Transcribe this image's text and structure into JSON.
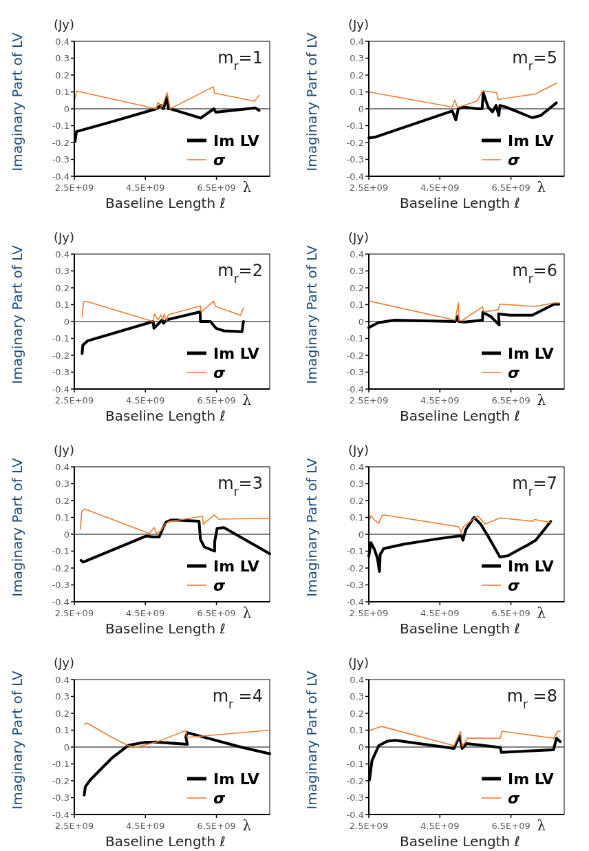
{
  "chart_data": [
    {
      "type": "line",
      "title": "m$_{r}$=1",
      "xlabel": "Baseline Length ℓ",
      "ylabel": "Imaginary Part of LV",
      "annotations": [
        "(Jy)",
        "λ"
      ],
      "xlim": [
        2500000000.0,
        8000000000.0
      ],
      "xticks": [
        {
          "value": 2500000000.0,
          "label": "2.5E+09"
        },
        {
          "value": 4500000000.0,
          "label": "4.5E+09"
        },
        {
          "value": 6500000000.0,
          "label": "6.5E+09"
        }
      ],
      "ylim": [
        -0.4,
        0.4
      ],
      "yticks": [
        -0.4,
        -0.3,
        -0.2,
        -0.1,
        0,
        0.1,
        0.2,
        0.3,
        0.4
      ],
      "grid": false,
      "legend": "bottom right",
      "ref_lines": [
        {
          "axis": "y",
          "value": 0,
          "color": "#000000"
        }
      ],
      "series": [
        {
          "name": "Im LV",
          "color": "#000000",
          "x": [
            2520000000.0,
            2560000000.0,
            3500000000.0,
            4810000000.0,
            4930000000.0,
            5010000000.0,
            5110000000.0,
            5150000000.0,
            5200000000.0,
            6060000000.0,
            6430000000.0,
            6480000000.0,
            7600000000.0,
            7700000000.0
          ],
          "values": [
            -0.195,
            -0.135,
            -0.08,
            0,
            0.02,
            0,
            0.07,
            0,
            0,
            -0.055,
            0,
            -0.02,
            0.005,
            -0.01
          ]
        },
        {
          "name": "σ",
          "color": "#ed7d31",
          "x": [
            2520000000.0,
            2560000000.0,
            4810000000.0,
            4850000000.0,
            4970000000.0,
            5110000000.0,
            5200000000.0,
            6410000000.0,
            6450000000.0,
            7570000000.0,
            7700000000.0
          ],
          "values": [
            0.06,
            0.105,
            0,
            0.04,
            0.01,
            0.095,
            0,
            0.13,
            0.093,
            0.045,
            0.08
          ]
        }
      ]
    },
    {
      "type": "line",
      "title": "m$_{r}$=5",
      "xlabel": "Baseline Length ℓ",
      "ylabel": "Imaginary Part of LV",
      "annotations": [
        "(Jy)",
        "λ"
      ],
      "xlim": [
        2500000000.0,
        8000000000.0
      ],
      "xticks": [
        {
          "value": 2500000000.0,
          "label": "2.5E+09"
        },
        {
          "value": 4500000000.0,
          "label": "4.5E+09"
        },
        {
          "value": 6500000000.0,
          "label": "6.5E+09"
        }
      ],
      "ylim": [
        -0.4,
        0.4
      ],
      "yticks": [
        -0.4,
        -0.3,
        -0.2,
        -0.1,
        0,
        0.1,
        0.2,
        0.3,
        0.4
      ],
      "grid": false,
      "legend": "bottom right",
      "ref_lines": [
        {
          "axis": "y",
          "value": 0,
          "color": "#000000"
        }
      ],
      "series": [
        {
          "name": "Im LV",
          "color": "#000000",
          "x": [
            2500000000.0,
            2680000000.0,
            4850000000.0,
            4950000000.0,
            5020000000.0,
            5160000000.0,
            5550000000.0,
            5690000000.0,
            5720000000.0,
            5860000000.0,
            5980000000.0,
            6080000000.0,
            6160000000.0,
            6190000000.0,
            6400000000.0,
            7100000000.0,
            7340000000.0,
            7780000000.0
          ],
          "values": [
            -0.172,
            -0.168,
            -0.013,
            -0.066,
            0.003,
            0.01,
            0,
            0,
            0.095,
            0.01,
            -0.018,
            0.02,
            -0.04,
            0.02,
            0.007,
            -0.053,
            -0.04,
            0.035
          ]
        },
        {
          "name": "σ",
          "color": "#ed7d31",
          "x": [
            2500000000.0,
            4850000000.0,
            4920000000.0,
            5000000000.0,
            5550000000.0,
            5710000000.0,
            6100000000.0,
            6140000000.0,
            7190000000.0,
            7780000000.0
          ],
          "values": [
            0.1,
            0.01,
            0.052,
            0.007,
            0.047,
            0.107,
            0.095,
            0.055,
            0.088,
            0.152
          ]
        }
      ]
    },
    {
      "type": "line",
      "title": "m$_{r}$=2",
      "xlabel": "Baseline Length ℓ",
      "ylabel": "Imaginary Part of LV",
      "annotations": [
        "(Jy)",
        "λ"
      ],
      "xlim": [
        2500000000.0,
        8000000000.0
      ],
      "xticks": [
        {
          "value": 2500000000.0,
          "label": "2.5E+09"
        },
        {
          "value": 4500000000.0,
          "label": "4.5E+09"
        },
        {
          "value": 6500000000.0,
          "label": "6.5E+09"
        }
      ],
      "ylim": [
        -0.4,
        0.4
      ],
      "yticks": [
        -0.4,
        -0.3,
        -0.2,
        -0.1,
        0,
        0.1,
        0.2,
        0.3,
        0.4
      ],
      "grid": false,
      "legend": "bottom right",
      "ref_lines": [
        {
          "axis": "y",
          "value": 0,
          "color": "#000000"
        }
      ],
      "series": [
        {
          "name": "Im LV",
          "color": "#000000",
          "x": [
            2720000000.0,
            2740000000.0,
            2870000000.0,
            4720000000.0,
            4740000000.0,
            4860000000.0,
            4970000000.0,
            5010000000.0,
            5100000000.0,
            6040000000.0,
            6050000000.0,
            6330000000.0,
            6490000000.0,
            6700000000.0,
            7220000000.0,
            7260000000.0
          ],
          "values": [
            -0.19,
            -0.14,
            -0.115,
            0,
            -0.04,
            -0.015,
            0.01,
            -0.01,
            0.01,
            0.057,
            0,
            0,
            -0.04,
            -0.055,
            -0.06,
            0
          ]
        },
        {
          "name": "σ",
          "color": "#ed7d31",
          "x": [
            2720000000.0,
            2760000000.0,
            2830000000.0,
            4720000000.0,
            4750000000.0,
            4860000000.0,
            4940000000.0,
            4990000000.0,
            5030000000.0,
            5100000000.0,
            5140000000.0,
            6050000000.0,
            6070000000.0,
            6420000000.0,
            6480000000.0,
            7180000000.0,
            7260000000.0
          ],
          "values": [
            0.03,
            0.115,
            0.12,
            0,
            0.045,
            0.01,
            0.04,
            0.01,
            0.045,
            0.005,
            0.04,
            0.093,
            0.057,
            0.12,
            0.09,
            0.037,
            0.08
          ]
        }
      ]
    },
    {
      "type": "line",
      "title": "m$_{r}$=6",
      "xlabel": "Baseline Length ℓ",
      "ylabel": "Imaginary Part of LV",
      "annotations": [
        "(Jy)",
        "λ"
      ],
      "xlim": [
        2500000000.0,
        8000000000.0
      ],
      "xticks": [
        {
          "value": 2500000000.0,
          "label": "2.5E+09"
        },
        {
          "value": 4500000000.0,
          "label": "4.5E+09"
        },
        {
          "value": 6500000000.0,
          "label": "6.5E+09"
        }
      ],
      "ylim": [
        -0.4,
        0.4
      ],
      "yticks": [
        -0.4,
        -0.3,
        -0.2,
        -0.1,
        0,
        0.1,
        0.2,
        0.3,
        0.4
      ],
      "grid": false,
      "legend": "bottom right",
      "ref_lines": [
        {
          "axis": "y",
          "value": 0,
          "color": "#000000"
        }
      ],
      "series": [
        {
          "name": "Im LV",
          "color": "#000000",
          "x": [
            2500000000.0,
            2760000000.0,
            3220000000.0,
            4930000000.0,
            4990000000.0,
            5040000000.0,
            5200000000.0,
            5700000000.0,
            5710000000.0,
            5930000000.0,
            6170000000.0,
            6150000000.0,
            6480000000.0,
            7100000000.0,
            7720000000.0,
            7850000000.0
          ],
          "values": [
            -0.036,
            -0.007,
            0.008,
            0,
            0.03,
            0,
            -0.003,
            0.008,
            0.055,
            0.03,
            -0.02,
            0.045,
            0.038,
            0.038,
            0.103,
            0.103
          ]
        },
        {
          "name": "σ",
          "color": "#ed7d31",
          "x": [
            2500000000.0,
            4930000000.0,
            5020000000.0,
            5040000000.0,
            5120000000.0,
            5700000000.0,
            5740000000.0,
            6150000000.0,
            6180000000.0,
            7170000000.0,
            7720000000.0,
            7850000000.0
          ],
          "values": [
            0.122,
            0.008,
            0.11,
            0.005,
            0.005,
            0.087,
            0.057,
            0.07,
            0.103,
            0.09,
            0.11,
            0.11
          ]
        }
      ]
    },
    {
      "type": "line",
      "title": "m$_{r}$=3",
      "xlabel": "Baseline Length ℓ",
      "ylabel": "Imaginary Part of LV",
      "annotations": [
        "(Jy)",
        "λ"
      ],
      "xlim": [
        2500000000.0,
        8000000000.0
      ],
      "xticks": [
        {
          "value": 2500000000.0,
          "label": "2.5E+09"
        },
        {
          "value": 4500000000.0,
          "label": "4.5E+09"
        },
        {
          "value": 6500000000.0,
          "label": "6.5E+09"
        }
      ],
      "ylim": [
        -0.4,
        0.4
      ],
      "yticks": [
        -0.4,
        -0.3,
        -0.2,
        -0.1,
        0,
        0.1,
        0.2,
        0.3,
        0.4
      ],
      "grid": false,
      "legend": "bottom right",
      "ref_lines": [
        {
          "axis": "y",
          "value": 0,
          "color": "#000000"
        }
      ],
      "series": [
        {
          "name": "Im LV",
          "color": "#000000",
          "x": [
            2690000000.0,
            2750000000.0,
            4530000000.0,
            4700000000.0,
            4890000000.0,
            4990000000.0,
            5080000000.0,
            5240000000.0,
            6010000000.0,
            6050000000.0,
            6160000000.0,
            6450000000.0,
            6450000000.0,
            6520000000.0,
            6710000000.0,
            8000000000.0
          ],
          "values": [
            -0.155,
            -0.165,
            -0.01,
            -0.015,
            -0.015,
            0.035,
            0.072,
            0.085,
            0.078,
            -0.03,
            -0.075,
            -0.1,
            -0.045,
            0.035,
            0.04,
            -0.115
          ]
        },
        {
          "name": "σ",
          "color": "#ed7d31",
          "x": [
            2670000000.0,
            2710000000.0,
            2790000000.0,
            4610000000.0,
            4750000000.0,
            4810000000.0,
            4930000000.0,
            5040000000.0,
            5160000000.0,
            6110000000.0,
            6130000000.0,
            6440000000.0,
            6560000000.0,
            8000000000.0
          ],
          "values": [
            0.03,
            0.135,
            0.15,
            0.005,
            0.04,
            0.005,
            0.02,
            0.055,
            0.075,
            0.107,
            0.06,
            0.115,
            0.09,
            0.095
          ]
        }
      ]
    },
    {
      "type": "line",
      "title": "m$_{r}$=7",
      "xlabel": "Baseline Length ℓ",
      "ylabel": "Imaginary Part of LV",
      "annotations": [
        "(Jy)",
        "λ"
      ],
      "xlim": [
        2500000000.0,
        8000000000.0
      ],
      "xticks": [
        {
          "value": 2500000000.0,
          "label": "2.5E+09"
        },
        {
          "value": 4500000000.0,
          "label": "4.5E+09"
        },
        {
          "value": 6500000000.0,
          "label": "6.5E+09"
        }
      ],
      "ylim": [
        -0.4,
        0.4
      ],
      "yticks": [
        -0.4,
        -0.3,
        -0.2,
        -0.1,
        0,
        0.1,
        0.2,
        0.3,
        0.4
      ],
      "grid": false,
      "legend": "bottom right",
      "ref_lines": [
        {
          "axis": "y",
          "value": 0,
          "color": "#000000"
        }
      ],
      "series": [
        {
          "name": "Im LV",
          "color": "#000000",
          "x": [
            2500000000.0,
            2560000000.0,
            2660000000.0,
            2740000000.0,
            2800000000.0,
            2820000000.0,
            2920000000.0,
            3500000000.0,
            4500000000.0,
            5100000000.0,
            5150000000.0,
            5230000000.0,
            5460000000.0,
            5650000000.0,
            5880000000.0,
            6190000000.0,
            6420000000.0,
            7000000000.0,
            7200000000.0,
            7620000000.0
          ],
          "values": [
            -0.13,
            -0.05,
            -0.09,
            -0.14,
            -0.22,
            -0.12,
            -0.085,
            -0.058,
            -0.025,
            -0.008,
            -0.035,
            0.028,
            0.1,
            0.06,
            -0.02,
            -0.135,
            -0.127,
            -0.06,
            -0.035,
            0.076
          ]
        },
        {
          "name": "σ",
          "color": "#ed7d31",
          "x": [
            2500000000.0,
            2560000000.0,
            2660000000.0,
            2780000000.0,
            2870000000.0,
            2910000000.0,
            5030000000.0,
            5100000000.0,
            5160000000.0,
            5570000000.0,
            5770000000.0,
            6190000000.0,
            7120000000.0,
            7160000000.0,
            7620000000.0
          ],
          "values": [
            0.077,
            0.11,
            0.085,
            0.065,
            0.11,
            0.115,
            0.045,
            0.01,
            0.045,
            0.11,
            0.06,
            0.097,
            0.077,
            0.088,
            0.07
          ]
        }
      ]
    },
    {
      "type": "line",
      "title": "m$_{r}$ =4",
      "xlabel": "Baseline Length ℓ",
      "ylabel": "Imaginary Part of LV",
      "annotations": [
        "(Jy)",
        "λ"
      ],
      "xlim": [
        2500000000.0,
        8000000000.0
      ],
      "xticks": [
        {
          "value": 2500000000.0,
          "label": "2.5E+09"
        },
        {
          "value": 4500000000.0,
          "label": "4.5E+09"
        },
        {
          "value": 6500000000.0,
          "label": "6.5E+09"
        }
      ],
      "ylim": [
        -0.4,
        0.4
      ],
      "yticks": [
        -0.4,
        -0.3,
        -0.2,
        -0.1,
        0,
        0.1,
        0.2,
        0.3,
        0.4
      ],
      "grid": false,
      "legend": "bottom right",
      "ref_lines": [
        {
          "axis": "y",
          "value": 0,
          "color": "#000000"
        }
      ],
      "series": [
        {
          "name": "Im LV",
          "color": "#000000",
          "x": [
            2780000000.0,
            2810000000.0,
            2950000000.0,
            3560000000.0,
            4020000000.0,
            4480000000.0,
            4790000000.0,
            5680000000.0,
            5640000000.0,
            5680000000.0,
            7180000000.0,
            8000000000.0
          ],
          "values": [
            -0.285,
            -0.235,
            -0.195,
            -0.065,
            0.01,
            0.028,
            0.03,
            0.016,
            0.06,
            0.085,
            0,
            -0.04
          ]
        },
        {
          "name": "σ",
          "color": "#ed7d31",
          "x": [
            2780000000.0,
            2850000000.0,
            3560000000.0,
            4020000000.0,
            4250000000.0,
            4790000000.0,
            5640000000.0,
            5680000000.0,
            8000000000.0
          ],
          "values": [
            0.135,
            0.143,
            0.057,
            0.008,
            0,
            0.028,
            0.098,
            0.057,
            0.1
          ]
        }
      ]
    },
    {
      "type": "line",
      "title": "m$_{r}$ =8",
      "xlabel": "Baseline Length ℓ",
      "ylabel": "Imaginary Part of LV",
      "annotations": [
        "(Jy)",
        "λ"
      ],
      "xlim": [
        2500000000.0,
        8000000000.0
      ],
      "xticks": [
        {
          "value": 2500000000.0,
          "label": "2.5E+09"
        },
        {
          "value": 4500000000.0,
          "label": "4.5E+09"
        },
        {
          "value": 6500000000.0,
          "label": "6.5E+09"
        }
      ],
      "ylim": [
        -0.4,
        0.4
      ],
      "yticks": [
        -0.4,
        -0.3,
        -0.2,
        -0.1,
        0,
        0.1,
        0.2,
        0.3,
        0.4
      ],
      "grid": false,
      "legend": "bottom right",
      "ref_lines": [
        {
          "axis": "y",
          "value": 0,
          "color": "#000000"
        }
      ],
      "series": [
        {
          "name": "Im LV",
          "color": "#000000",
          "x": [
            2520000000.0,
            2590000000.0,
            2780000000.0,
            3020000000.0,
            3250000000.0,
            4900000000.0,
            4980000000.0,
            5050000000.0,
            5130000000.0,
            5250000000.0,
            5780000000.0,
            6200000000.0,
            6230000000.0,
            7700000000.0,
            7780000000.0,
            7890000000.0
          ],
          "values": [
            -0.195,
            -0.08,
            0.008,
            0.035,
            0.04,
            -0.008,
            0.032,
            0.065,
            -0.008,
            0.02,
            0.008,
            -0.003,
            -0.032,
            -0.016,
            0.052,
            0.032
          ]
        },
        {
          "name": "σ",
          "color": "#ed7d31",
          "x": [
            2500000000.0,
            2860000000.0,
            4900000000.0,
            5080000000.0,
            5130000000.0,
            5280000000.0,
            6200000000.0,
            6250000000.0,
            7700000000.0,
            7820000000.0,
            7890000000.0
          ],
          "values": [
            0.097,
            0.122,
            0.008,
            0.092,
            0.003,
            0.053,
            0.052,
            0.094,
            0.052,
            0.094,
            0.094
          ]
        }
      ]
    }
  ]
}
